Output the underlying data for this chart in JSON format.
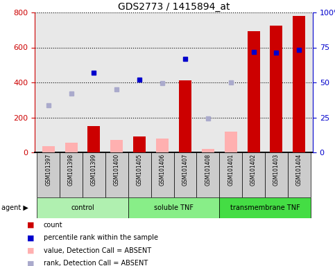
{
  "title": "GDS2773 / 1415894_at",
  "samples": [
    "GSM101397",
    "GSM101398",
    "GSM101399",
    "GSM101400",
    "GSM101405",
    "GSM101406",
    "GSM101407",
    "GSM101408",
    "GSM101401",
    "GSM101402",
    "GSM101403",
    "GSM101404"
  ],
  "groups": [
    {
      "label": "control",
      "start": 0,
      "end": 4,
      "color": "#b0f0b0"
    },
    {
      "label": "soluble TNF",
      "start": 4,
      "end": 8,
      "color": "#88ee88"
    },
    {
      "label": "transmembrane TNF",
      "start": 8,
      "end": 12,
      "color": "#44dd44"
    }
  ],
  "count_present": [
    null,
    null,
    150,
    null,
    90,
    null,
    410,
    null,
    null,
    695,
    725,
    780
  ],
  "count_absent": [
    35,
    55,
    null,
    70,
    null,
    80,
    null,
    20,
    120,
    null,
    null,
    null
  ],
  "rank_present": [
    null,
    null,
    455,
    null,
    415,
    null,
    535,
    null,
    null,
    575,
    570,
    585
  ],
  "rank_absent": [
    270,
    335,
    null,
    360,
    null,
    395,
    null,
    195,
    400,
    null,
    null,
    null
  ],
  "ylim_left": [
    0,
    800
  ],
  "ylim_right": [
    0,
    100
  ],
  "yticks_left": [
    0,
    200,
    400,
    600,
    800
  ],
  "yticks_right": [
    0,
    25,
    50,
    75,
    100
  ],
  "ytick_labels_right": [
    "0",
    "25",
    "50",
    "75",
    "100%"
  ],
  "left_axis_color": "#cc0000",
  "right_axis_color": "#0000cc",
  "bar_present_color": "#cc0000",
  "bar_absent_color": "#ffb0b0",
  "dot_present_color": "#0000cc",
  "dot_absent_color": "#aaaacc",
  "plot_bg": "#e8e8e8",
  "sample_bg": "#cccccc",
  "legend_labels": [
    "count",
    "percentile rank within the sample",
    "value, Detection Call = ABSENT",
    "rank, Detection Call = ABSENT"
  ],
  "legend_colors": [
    "#cc0000",
    "#0000cc",
    "#ffb0b0",
    "#aaaacc"
  ]
}
